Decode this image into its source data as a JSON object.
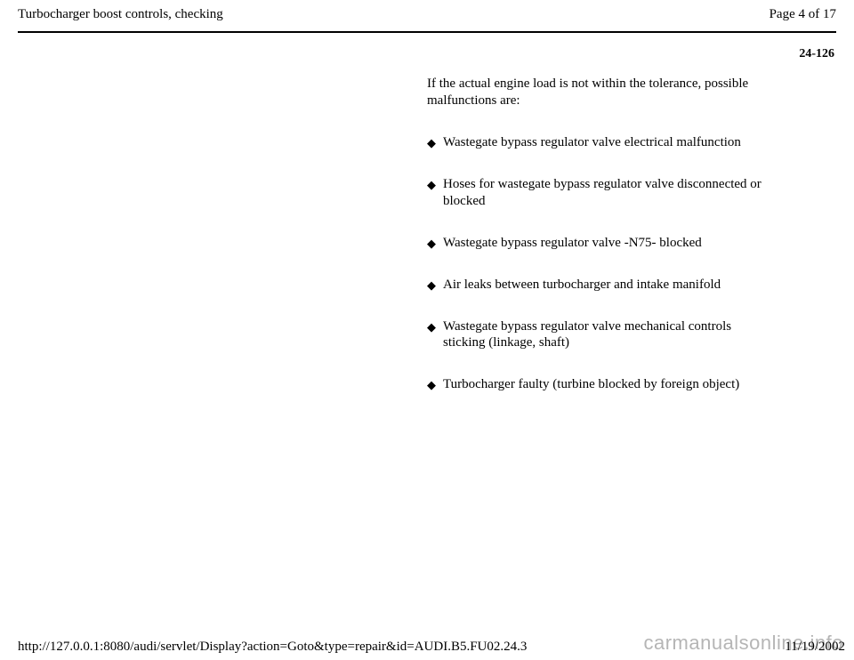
{
  "header": {
    "title": "Turbocharger boost controls, checking",
    "page_label": "Page 4 of 17"
  },
  "section_number": "24-126",
  "intro_text": "If the actual engine load is not within the tolerance, possible malfunctions are:",
  "bullets": [
    "Wastegate bypass regulator valve electrical malfunction",
    "Hoses for wastegate bypass regulator valve disconnected or blocked",
    "Wastegate bypass regulator valve -N75- blocked",
    "Air leaks between turbocharger and intake manifold",
    "Wastegate bypass regulator valve mechanical controls sticking (linkage, shaft)",
    "Turbocharger faulty (turbine blocked by foreign object)"
  ],
  "footer": {
    "url": "http://127.0.0.1:8080/audi/servlet/Display?action=Goto&type=repair&id=AUDI.B5.FU02.24.3",
    "date": "11/19/2002"
  },
  "watermark": "carmanualsonline.info"
}
